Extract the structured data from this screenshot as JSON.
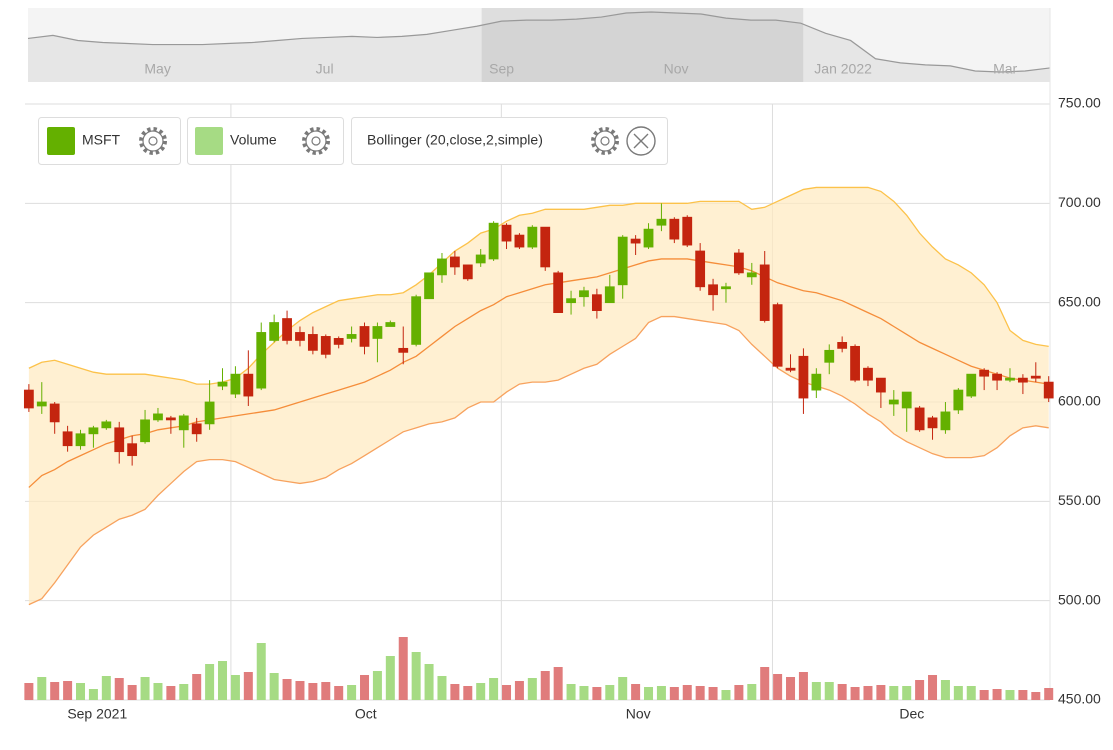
{
  "chart_data": {
    "type": "candlestick",
    "ylim": [
      450,
      750
    ],
    "yticks": [
      {
        "value": 450,
        "label": "450.00"
      },
      {
        "value": 500,
        "label": "500.00"
      },
      {
        "value": 550,
        "label": "550.00"
      },
      {
        "value": 600,
        "label": "600.00"
      },
      {
        "value": 650,
        "label": "650.00"
      },
      {
        "value": 700,
        "label": "700.00"
      },
      {
        "value": 750,
        "label": "750.00"
      }
    ],
    "xlim": [
      -0.3,
      79.1
    ],
    "xticks": [
      {
        "value": 5.3,
        "label": "Sep 2021"
      },
      {
        "value": 26.1,
        "label": "Oct"
      },
      {
        "value": 47.2,
        "label": "Nov"
      },
      {
        "value": 68.4,
        "label": "Dec"
      }
    ],
    "xgrid": [
      15.65,
      36.6,
      57.6
    ],
    "grid": true,
    "series": [
      {
        "name": "MSFT",
        "color": "#64b000",
        "down_color": "#c4250f",
        "open": [
          606,
          598,
          599,
          585,
          578,
          584,
          587,
          587,
          579,
          580,
          591,
          592,
          586,
          589,
          589,
          608,
          604,
          614,
          607,
          631,
          642,
          635,
          634,
          633,
          632,
          632,
          638,
          632,
          638,
          627,
          629,
          652,
          664,
          673,
          669,
          670,
          672,
          689,
          684,
          678,
          688,
          665,
          650,
          653,
          654,
          650,
          659,
          682,
          678,
          689,
          692,
          693,
          676,
          659,
          657,
          675,
          663,
          669,
          649,
          617,
          623,
          606,
          620,
          630,
          628,
          617,
          612,
          599,
          597,
          597,
          592,
          586,
          596,
          603,
          616,
          614,
          611,
          612,
          613,
          610
        ],
        "high": [
          609,
          610,
          600,
          588,
          586,
          588,
          591,
          590,
          583,
          596,
          597,
          593,
          594,
          592,
          611,
          617,
          618,
          626,
          640,
          644,
          646,
          638,
          638,
          634,
          633,
          638,
          640,
          640,
          641,
          638,
          654,
          665,
          675,
          676,
          669,
          677,
          691,
          690,
          685,
          689,
          688,
          666,
          656,
          658,
          657,
          664,
          684,
          684,
          690,
          700,
          693,
          694,
          680,
          662,
          660,
          677,
          670,
          676,
          650,
          624,
          627,
          617,
          629,
          633,
          629,
          618,
          612,
          606,
          605,
          598,
          593,
          600,
          607,
          614,
          617,
          615,
          617,
          614,
          620,
          613
        ],
        "low": [
          595,
          594,
          584,
          575,
          576,
          577,
          586,
          569,
          568,
          579,
          590,
          584,
          577,
          580,
          586,
          606,
          602,
          598,
          606,
          630,
          629,
          628,
          624,
          622,
          627,
          630,
          624,
          620,
          638,
          619,
          628,
          652,
          660,
          664,
          661,
          668,
          671,
          677,
          677,
          677,
          666,
          645,
          644,
          648,
          642,
          650,
          652,
          674,
          677,
          686,
          680,
          678,
          656,
          646,
          650,
          664,
          659,
          640,
          617,
          615,
          594,
          602,
          614,
          625,
          610,
          608,
          597,
          593,
          585,
          585,
          581,
          584,
          594,
          602,
          606,
          606,
          610,
          604,
          610,
          600
        ],
        "close": [
          597,
          600,
          590,
          578,
          584,
          587,
          590,
          575,
          573,
          591,
          594,
          591,
          593,
          584,
          600,
          610,
          614,
          603,
          635,
          640,
          631,
          631,
          626,
          624,
          629,
          634,
          628,
          638,
          640,
          625,
          653,
          665,
          672,
          668,
          662,
          674,
          690,
          681,
          678,
          688,
          668,
          645,
          652,
          656,
          646,
          658,
          683,
          680,
          687,
          692,
          682,
          679,
          658,
          654,
          658,
          665,
          665,
          641,
          618,
          616,
          602,
          614,
          626,
          627,
          611,
          611,
          605,
          601,
          605,
          586,
          587,
          595,
          606,
          614,
          613,
          611,
          612,
          610,
          612,
          602
        ]
      }
    ],
    "volume": {
      "name": "Volume",
      "color": "#a6db84",
      "down_color": "#e07c7c",
      "values": [
        17,
        23,
        18,
        19,
        17,
        11,
        24,
        22,
        15,
        23,
        17,
        14,
        16,
        26,
        36,
        39,
        25,
        28,
        57,
        27,
        21,
        19,
        17,
        18,
        14,
        15,
        25,
        29,
        44,
        63,
        48,
        36,
        24,
        16,
        14,
        17,
        22,
        15,
        19,
        22,
        29,
        33,
        16,
        14,
        13,
        15,
        23,
        16,
        13,
        14,
        13,
        15,
        14,
        13,
        10,
        15,
        16,
        33,
        26,
        23,
        28,
        18,
        18,
        16,
        13,
        14,
        15,
        14,
        14,
        20,
        25,
        20,
        14,
        14,
        10,
        11,
        10,
        10,
        8,
        12
      ]
    },
    "indicator": {
      "name": "Bollinger (20,close,2,simple)",
      "upper_color": "#fcc24a",
      "middle_color": "#f58d3a",
      "lower_color": "#f7a25e",
      "fill": "#ffe9bf",
      "upper": [
        617,
        620,
        621,
        619,
        617,
        615,
        614,
        614,
        614,
        614,
        613,
        612,
        611,
        609,
        609,
        610,
        612,
        617,
        624,
        630,
        636,
        641,
        645,
        648,
        651,
        652,
        653,
        654,
        654,
        655,
        659,
        664,
        670,
        676,
        680,
        685,
        687,
        691,
        694,
        695,
        697,
        697,
        697,
        697,
        698,
        699,
        699,
        700,
        700,
        700,
        700,
        700,
        701,
        701,
        701,
        701,
        697,
        698,
        701,
        704,
        707,
        708,
        708,
        708,
        708,
        708,
        706,
        701,
        694,
        685,
        678,
        672,
        669,
        665,
        659,
        650,
        636,
        631,
        629,
        628
      ],
      "middle": [
        557,
        563,
        566,
        570,
        573,
        576,
        579,
        581,
        583,
        584,
        586,
        587,
        588,
        590,
        591,
        592,
        593,
        594,
        595,
        596,
        598,
        600,
        602,
        604,
        606,
        608,
        610,
        613,
        616,
        620,
        623,
        628,
        633,
        638,
        642,
        646,
        649,
        653,
        655,
        657,
        659,
        660,
        661,
        662,
        663,
        665,
        667,
        669,
        671,
        672,
        672,
        672,
        671,
        670,
        669,
        668,
        666,
        663,
        660,
        658,
        656,
        655,
        653,
        651,
        648,
        645,
        642,
        638,
        634,
        630,
        627,
        624,
        621,
        618,
        616,
        614,
        612,
        611,
        610,
        609
      ],
      "lower": [
        498,
        501,
        509,
        518,
        527,
        533,
        537,
        541,
        543,
        546,
        553,
        559,
        565,
        570,
        571,
        571,
        570,
        567,
        564,
        561,
        560,
        559,
        560,
        562,
        566,
        569,
        573,
        577,
        581,
        585,
        587,
        589,
        590,
        592,
        597,
        600,
        600,
        605,
        609,
        610,
        610,
        611,
        614,
        617,
        619,
        624,
        628,
        632,
        640,
        643,
        643,
        642,
        641,
        640,
        639,
        636,
        629,
        623,
        617,
        613,
        610,
        608,
        606,
        603,
        599,
        594,
        590,
        584,
        580,
        577,
        574,
        572,
        572,
        572,
        573,
        577,
        583,
        587,
        588,
        587
      ]
    },
    "navigator": {
      "values": [
        492,
        516,
        476,
        460,
        452,
        444,
        444,
        444,
        452,
        460,
        476,
        492,
        500,
        508,
        500,
        508,
        524,
        556,
        588,
        628,
        636,
        636,
        644,
        660,
        692,
        700,
        692,
        684,
        652,
        636,
        636,
        612,
        532,
        476,
        332,
        300,
        284,
        276,
        236,
        228,
        236,
        260
      ],
      "ticks": [
        {
          "value": 5.2,
          "label": "May"
        },
        {
          "value": 11.9,
          "label": "Jul"
        },
        {
          "value": 19.0,
          "label": "Sep"
        },
        {
          "value": 26.0,
          "label": "Nov"
        },
        {
          "value": 32.7,
          "label": "Jan 2022"
        },
        {
          "value": 39.2,
          "label": "Mar"
        }
      ],
      "selection": [
        18.2,
        31.1
      ]
    }
  }
}
